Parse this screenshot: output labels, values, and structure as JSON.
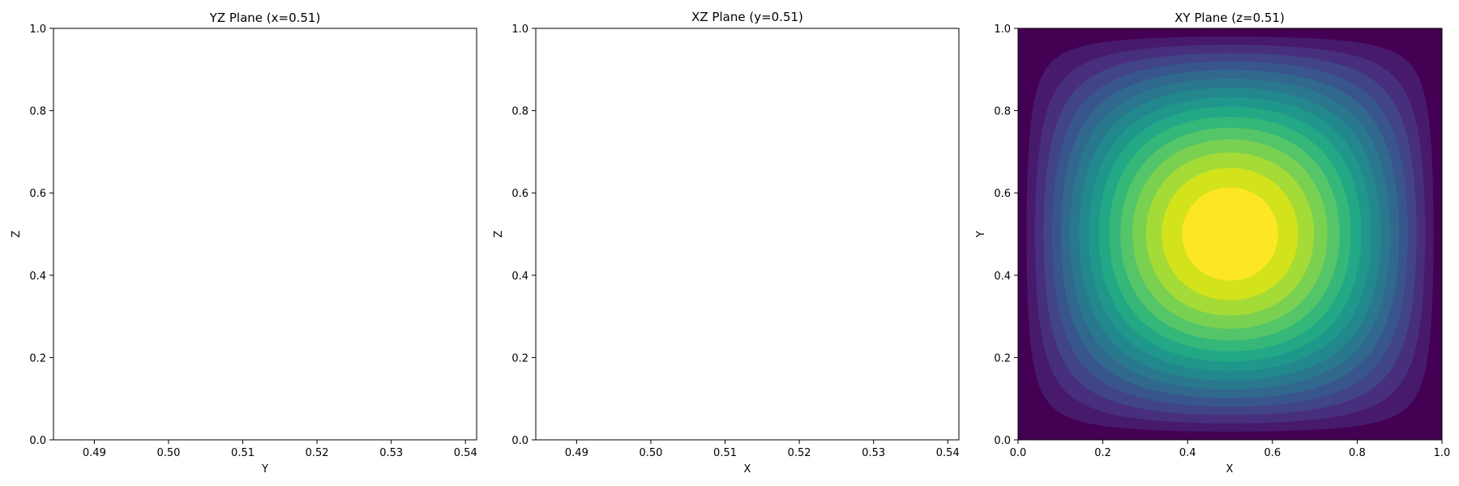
{
  "chart_data": [
    {
      "type": "line",
      "title": "YZ Plane (x=0.51)",
      "xlabel": "Y",
      "ylabel": "Z",
      "xlim": [
        0.4845,
        0.5415
      ],
      "ylim": [
        0,
        1
      ],
      "xticks": [
        "0.49",
        "0.50",
        "0.51",
        "0.52",
        "0.53",
        "0.54"
      ],
      "yticks": [
        "0.0",
        "0.2",
        "0.4",
        "0.6",
        "0.8",
        "1.0"
      ],
      "series": [],
      "grid": false
    },
    {
      "type": "line",
      "title": "XZ Plane (y=0.51)",
      "xlabel": "X",
      "ylabel": "Z",
      "xlim": [
        0.4845,
        0.5415
      ],
      "ylim": [
        0,
        1
      ],
      "xticks": [
        "0.49",
        "0.50",
        "0.51",
        "0.52",
        "0.53",
        "0.54"
      ],
      "yticks": [
        "0.0",
        "0.2",
        "0.4",
        "0.6",
        "0.8",
        "1.0"
      ],
      "series": [],
      "grid": false
    },
    {
      "type": "heatmap",
      "title": "XY Plane (z=0.51)",
      "xlabel": "X",
      "ylabel": "Y",
      "xlim": [
        0,
        1
      ],
      "ylim": [
        0,
        1
      ],
      "xticks": [
        "0.0",
        "0.2",
        "0.4",
        "0.6",
        "0.8",
        "1.0"
      ],
      "yticks": [
        "0.0",
        "0.2",
        "0.4",
        "0.6",
        "0.8",
        "1.0"
      ],
      "field": "sin(pi*x)*sin(pi*y)",
      "center": [
        0.5,
        0.5
      ],
      "levels": 15,
      "colormap": "viridis",
      "colors": [
        "#440154",
        "#481a6c",
        "#472f7d",
        "#414487",
        "#39568c",
        "#31688e",
        "#2a788e",
        "#23888e",
        "#1f988b",
        "#22a884",
        "#35b779",
        "#54c568",
        "#7ad151",
        "#a5db36",
        "#d2e21b",
        "#fde725"
      ],
      "grid": false
    }
  ]
}
